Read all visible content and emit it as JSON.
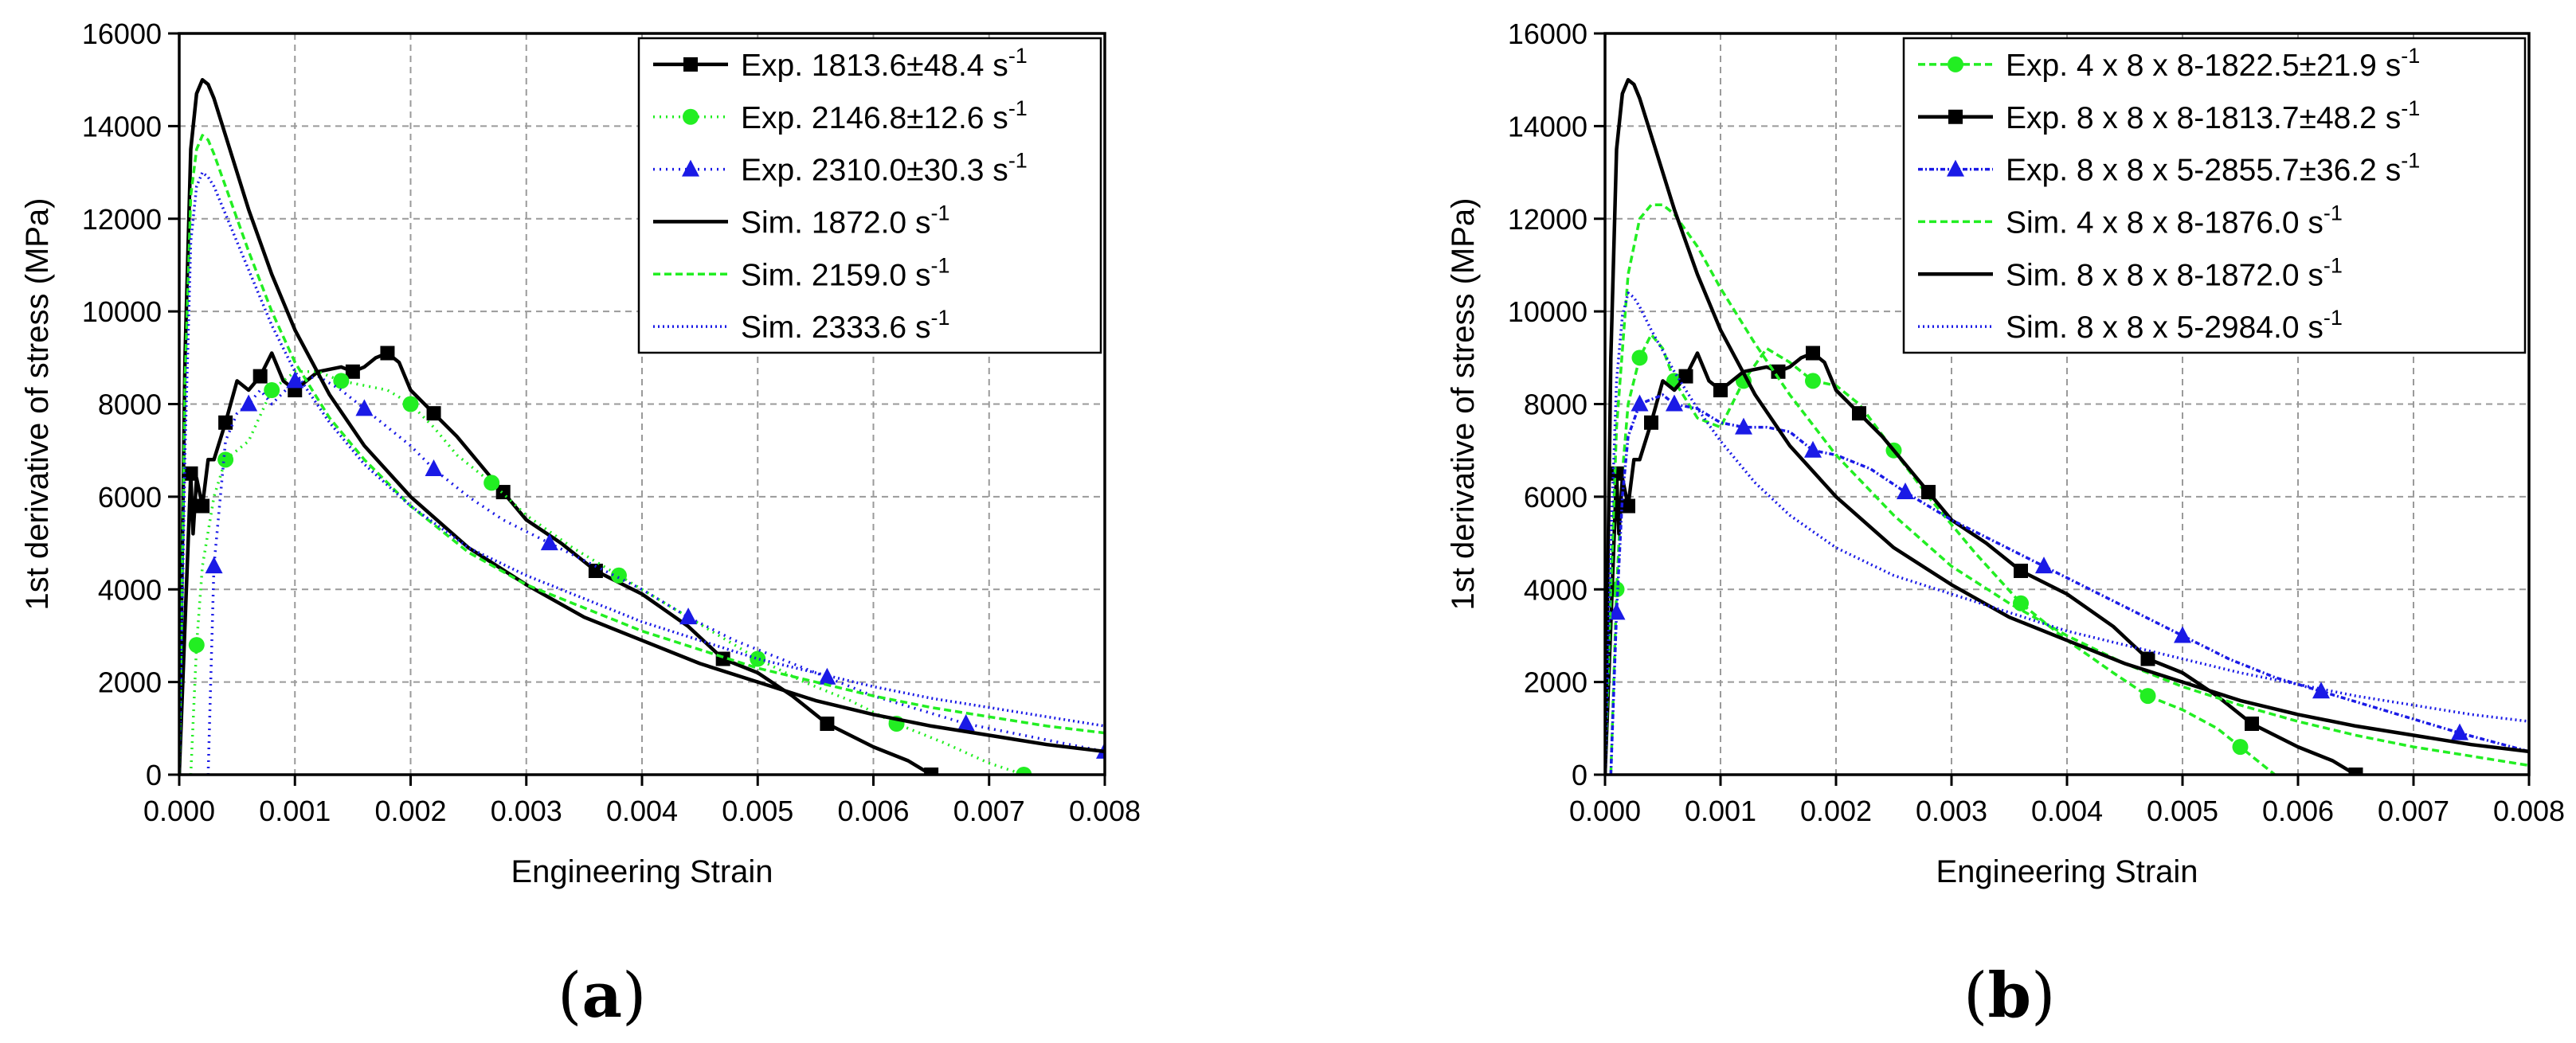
{
  "chart_data": [
    {
      "type": "line",
      "panel_label": "a",
      "xlabel": "Engineering Strain",
      "ylabel": "1st derivative of stress (MPa)",
      "xlim": [
        0.0,
        0.008
      ],
      "ylim": [
        0,
        16000
      ],
      "xticks": [
        "0.000",
        "0.001",
        "0.002",
        "0.003",
        "0.004",
        "0.005",
        "0.006",
        "0.007",
        "0.008"
      ],
      "yticks": [
        "0",
        "2000",
        "4000",
        "6000",
        "8000",
        "10000",
        "12000",
        "14000",
        "16000"
      ],
      "grid": true,
      "legend_position": "top-right",
      "series": [
        {
          "name": "Exp. 1813.6±48.4 s",
          "sup": "-1",
          "color": "#000000",
          "dash": "solid",
          "marker": "square",
          "x": [
            0,
            0.0001,
            0.00012,
            0.00015,
            0.0002,
            0.00025,
            0.0003,
            0.0004,
            0.0005,
            0.0006,
            0.0007,
            0.0008,
            0.0009,
            0.001,
            0.0012,
            0.0014,
            0.0015,
            0.0016,
            0.0017,
            0.0018,
            0.0019,
            0.002,
            0.0022,
            0.0024,
            0.0026,
            0.0028,
            0.003,
            0.0033,
            0.0036,
            0.004,
            0.0044,
            0.0047,
            0.005,
            0.0053,
            0.0056,
            0.006,
            0.0063,
            0.0065
          ],
          "y": [
            0,
            6500,
            5200,
            6400,
            5800,
            6800,
            6800,
            7600,
            8500,
            8300,
            8600,
            9100,
            8500,
            8300,
            8700,
            8800,
            8700,
            8800,
            9000,
            9100,
            8900,
            8300,
            7800,
            7300,
            6700,
            6100,
            5500,
            5000,
            4400,
            3900,
            3200,
            2500,
            2200,
            1700,
            1100,
            600,
            300,
            0
          ]
        },
        {
          "name": "Exp. 2146.8±12.6 s",
          "sup": "-1",
          "color": "#22ee22",
          "dash": "2,6",
          "marker": "circle",
          "x": [
            0.0001,
            0.00015,
            0.0002,
            0.0003,
            0.0004,
            0.0005,
            0.0006,
            0.0008,
            0.001,
            0.0012,
            0.0014,
            0.0016,
            0.0018,
            0.002,
            0.0022,
            0.0024,
            0.0027,
            0.003,
            0.0034,
            0.0038,
            0.0042,
            0.0046,
            0.005,
            0.0054,
            0.0058,
            0.0062,
            0.0066,
            0.007,
            0.0073
          ],
          "y": [
            0,
            2800,
            4500,
            6000,
            6800,
            7000,
            7200,
            8300,
            8700,
            8700,
            8500,
            8400,
            8300,
            8000,
            7500,
            6900,
            6300,
            5600,
            4900,
            4300,
            3700,
            3100,
            2500,
            2000,
            1600,
            1100,
            700,
            250,
            0
          ]
        },
        {
          "name": "Exp. 2310.0±30.3 s",
          "sup": "-1",
          "color": "#1a1ae6",
          "dash": "2,6",
          "marker": "triangle",
          "x": [
            0.00025,
            0.0003,
            0.0004,
            0.0005,
            0.0006,
            0.0007,
            0.0008,
            0.001,
            0.0012,
            0.0014,
            0.0016,
            0.0018,
            0.002,
            0.0022,
            0.0025,
            0.0028,
            0.0032,
            0.0036,
            0.004,
            0.0044,
            0.0048,
            0.0052,
            0.0056,
            0.006,
            0.0064,
            0.0068,
            0.0072,
            0.0076,
            0.008
          ],
          "y": [
            0,
            4500,
            7200,
            7800,
            8000,
            8300,
            8000,
            8500,
            8600,
            8300,
            7900,
            7500,
            7100,
            6600,
            6000,
            5500,
            5000,
            4500,
            4000,
            3400,
            2900,
            2500,
            2100,
            1700,
            1400,
            1100,
            900,
            700,
            500
          ]
        },
        {
          "name": "Sim. 1872.0 s",
          "sup": "-1",
          "color": "#000000",
          "dash": "solid",
          "marker": "none",
          "x": [
            0,
            5e-05,
            0.0001,
            0.00015,
            0.0002,
            0.00025,
            0.0003,
            0.0004,
            0.0006,
            0.0008,
            0.001,
            0.0013,
            0.0016,
            0.002,
            0.0025,
            0.003,
            0.0035,
            0.004,
            0.0045,
            0.005,
            0.0055,
            0.006,
            0.0065,
            0.007,
            0.0075,
            0.008
          ],
          "y": [
            0,
            9000,
            13500,
            14700,
            15000,
            14900,
            14600,
            13800,
            12200,
            10800,
            9600,
            8200,
            7100,
            6000,
            4900,
            4100,
            3400,
            2900,
            2400,
            2000,
            1600,
            1300,
            1050,
            850,
            650,
            500
          ]
        },
        {
          "name": "Sim. 2159.0 s",
          "sup": "-1",
          "color": "#22ee22",
          "dash": "9,5",
          "marker": "none",
          "x": [
            0,
            5e-05,
            0.0001,
            0.00015,
            0.0002,
            0.00025,
            0.0003,
            0.0004,
            0.0006,
            0.0008,
            0.001,
            0.0013,
            0.0016,
            0.002,
            0.0025,
            0.003,
            0.0035,
            0.004,
            0.0045,
            0.005,
            0.0055,
            0.006,
            0.0065,
            0.007,
            0.0075,
            0.008
          ],
          "y": [
            0,
            8500,
            12500,
            13500,
            13800,
            13700,
            13400,
            12700,
            11300,
            10000,
            8900,
            7700,
            6800,
            5800,
            4800,
            4100,
            3600,
            3100,
            2700,
            2300,
            2000,
            1700,
            1450,
            1250,
            1050,
            900
          ]
        },
        {
          "name": "Sim. 2333.6 s",
          "sup": "-1",
          "color": "#1a1ae6",
          "dash": "2,4",
          "marker": "none",
          "x": [
            0,
            5e-05,
            0.0001,
            0.00015,
            0.0002,
            0.00025,
            0.0003,
            0.0004,
            0.0006,
            0.0008,
            0.001,
            0.0013,
            0.0016,
            0.002,
            0.0025,
            0.003,
            0.0035,
            0.004,
            0.0045,
            0.005,
            0.0055,
            0.006,
            0.0065,
            0.007,
            0.0075,
            0.008
          ],
          "y": [
            0,
            7000,
            11500,
            12700,
            13000,
            12900,
            12700,
            12100,
            10900,
            9700,
            8700,
            7600,
            6700,
            5800,
            4900,
            4300,
            3800,
            3300,
            2900,
            2500,
            2200,
            1900,
            1650,
            1450,
            1250,
            1050
          ]
        }
      ]
    },
    {
      "type": "line",
      "panel_label": "b",
      "xlabel": "Engineering Strain",
      "ylabel": "1st derivative of stress (MPa)",
      "xlim": [
        0.0,
        0.008
      ],
      "ylim": [
        0,
        16000
      ],
      "xticks": [
        "0.000",
        "0.001",
        "0.002",
        "0.003",
        "0.004",
        "0.005",
        "0.006",
        "0.007",
        "0.008"
      ],
      "yticks": [
        "0",
        "2000",
        "4000",
        "6000",
        "8000",
        "10000",
        "12000",
        "14000",
        "16000"
      ],
      "grid": true,
      "legend_position": "top-right",
      "series": [
        {
          "name": "Exp. 4 x 8 x 8-1822.5±21.9 s",
          "sup": "-1",
          "color": "#22ee22",
          "dash": "9,5",
          "marker": "circle",
          "x": [
            5e-05,
            0.0001,
            0.00015,
            0.0002,
            0.0003,
            0.0004,
            0.0005,
            0.0006,
            0.0008,
            0.001,
            0.0012,
            0.0014,
            0.0016,
            0.0018,
            0.002,
            0.0022,
            0.0025,
            0.0028,
            0.0032,
            0.0036,
            0.004,
            0.0044,
            0.0047,
            0.005,
            0.0053,
            0.0055,
            0.0058
          ],
          "y": [
            0,
            4000,
            6500,
            8000,
            9000,
            9500,
            9200,
            8500,
            7700,
            7500,
            8500,
            9200,
            8900,
            8500,
            8400,
            8000,
            7000,
            6000,
            4800,
            3700,
            2900,
            2200,
            1700,
            1400,
            1000,
            600,
            0
          ]
        },
        {
          "name": "Exp. 8 x 8 x 8-1813.7±48.2 s",
          "sup": "-1",
          "color": "#000000",
          "dash": "solid",
          "marker": "square",
          "x": [
            0,
            0.0001,
            0.00012,
            0.00015,
            0.0002,
            0.00025,
            0.0003,
            0.0004,
            0.0005,
            0.0006,
            0.0007,
            0.0008,
            0.0009,
            0.001,
            0.0012,
            0.0014,
            0.0015,
            0.0016,
            0.0017,
            0.0018,
            0.0019,
            0.002,
            0.0022,
            0.0024,
            0.0026,
            0.0028,
            0.003,
            0.0033,
            0.0036,
            0.004,
            0.0044,
            0.0047,
            0.005,
            0.0053,
            0.0056,
            0.006,
            0.0063,
            0.0065
          ],
          "y": [
            0,
            6500,
            5200,
            6400,
            5800,
            6800,
            6800,
            7600,
            8500,
            8300,
            8600,
            9100,
            8500,
            8300,
            8700,
            8800,
            8700,
            8800,
            9000,
            9100,
            8900,
            8300,
            7800,
            7300,
            6700,
            6100,
            5500,
            5000,
            4400,
            3900,
            3200,
            2500,
            2200,
            1700,
            1100,
            600,
            300,
            0
          ]
        },
        {
          "name": "Exp. 8 x 8 x 5-2855.7±36.2 s",
          "sup": "-1",
          "color": "#1a1ae6",
          "dash": "6,3,2,3",
          "marker": "triangle",
          "x": [
            5e-05,
            0.0001,
            0.00015,
            0.0002,
            0.0003,
            0.0004,
            0.0005,
            0.0006,
            0.0008,
            0.001,
            0.0012,
            0.0014,
            0.0016,
            0.0018,
            0.002,
            0.0023,
            0.0026,
            0.003,
            0.0034,
            0.0038,
            0.0042,
            0.0046,
            0.005,
            0.0054,
            0.0058,
            0.0062,
            0.0066,
            0.007,
            0.0074,
            0.008
          ],
          "y": [
            0,
            3500,
            6000,
            7300,
            8000,
            8100,
            8200,
            8000,
            7900,
            7600,
            7500,
            7500,
            7400,
            7000,
            6900,
            6600,
            6100,
            5500,
            5000,
            4500,
            4000,
            3500,
            3000,
            2500,
            2100,
            1800,
            1500,
            1200,
            900,
            500
          ]
        },
        {
          "name": "Sim. 4 x 8 x 8-1876.0 s",
          "sup": "-1",
          "color": "#22ee22",
          "dash": "9,5",
          "marker": "none",
          "x": [
            0,
            5e-05,
            0.0001,
            0.0002,
            0.0003,
            0.0004,
            0.0005,
            0.0006,
            0.0008,
            0.001,
            0.0013,
            0.0016,
            0.002,
            0.0025,
            0.003,
            0.0035,
            0.004,
            0.0045,
            0.005,
            0.0055,
            0.006,
            0.0065,
            0.007,
            0.0075,
            0.008
          ],
          "y": [
            0,
            4000,
            7500,
            10800,
            12000,
            12300,
            12300,
            12100,
            11400,
            10500,
            9300,
            8200,
            6900,
            5600,
            4500,
            3700,
            3000,
            2400,
            1900,
            1500,
            1150,
            850,
            600,
            400,
            200
          ]
        },
        {
          "name": "Sim. 8 x 8 x 8-1872.0 s",
          "sup": "-1",
          "color": "#000000",
          "dash": "solid",
          "marker": "none",
          "x": [
            0,
            5e-05,
            0.0001,
            0.00015,
            0.0002,
            0.00025,
            0.0003,
            0.0004,
            0.0006,
            0.0008,
            0.001,
            0.0013,
            0.0016,
            0.002,
            0.0025,
            0.003,
            0.0035,
            0.004,
            0.0045,
            0.005,
            0.0055,
            0.006,
            0.0065,
            0.007,
            0.0075,
            0.008
          ],
          "y": [
            0,
            9000,
            13500,
            14700,
            15000,
            14900,
            14600,
            13800,
            12200,
            10800,
            9600,
            8200,
            7100,
            6000,
            4900,
            4100,
            3400,
            2900,
            2400,
            2000,
            1600,
            1300,
            1050,
            850,
            650,
            500
          ]
        },
        {
          "name": "Sim. 8 x 8 x 5-2984.0 s",
          "sup": "-1",
          "color": "#1a1ae6",
          "dash": "2,4",
          "marker": "none",
          "x": [
            0,
            5e-05,
            0.0001,
            0.00015,
            0.0002,
            0.00025,
            0.0003,
            0.0004,
            0.0006,
            0.0008,
            0.001,
            0.0013,
            0.0016,
            0.002,
            0.0025,
            0.003,
            0.0035,
            0.004,
            0.0045,
            0.005,
            0.0055,
            0.006,
            0.0065,
            0.007,
            0.0075,
            0.008
          ],
          "y": [
            0,
            5000,
            8500,
            9900,
            10400,
            10300,
            10100,
            9600,
            8700,
            7900,
            7200,
            6300,
            5600,
            4900,
            4300,
            3900,
            3500,
            3100,
            2800,
            2500,
            2200,
            1950,
            1700,
            1500,
            1300,
            1150
          ]
        }
      ]
    }
  ]
}
